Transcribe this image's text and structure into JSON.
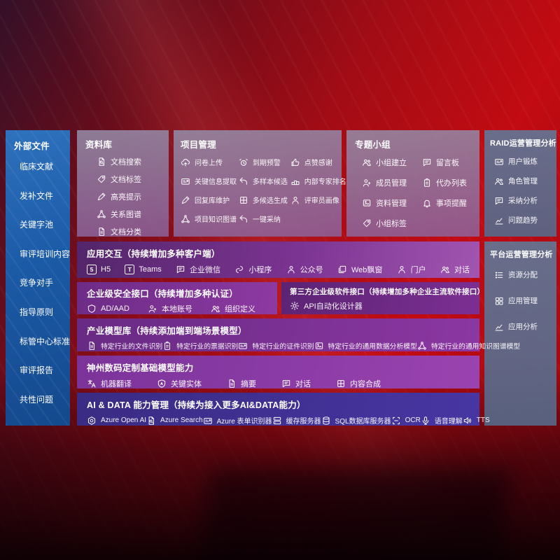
{
  "colors": {
    "background_red": "#c20b12",
    "background_dark": "#341028",
    "sidebar_blue": "#1b5aa6",
    "panel_mauve": "#8f86a5",
    "panel_slate": "#5d7090",
    "purple_light": "#9a43b0",
    "purple_mid": "#8c37a2",
    "purple_dark": "#5c2374",
    "indigo": "#4736a2"
  },
  "sidebar": {
    "title": "外部文件",
    "items": [
      "临床文献",
      "发补文件",
      "关键字池",
      "审评培训内容",
      "竞争对手",
      "指导原则",
      "标管中心标准",
      "审评报告",
      "共性问题"
    ]
  },
  "panels": {
    "repository": {
      "title": "资料库",
      "items": [
        {
          "icon": "doc-search",
          "label": "文档搜索"
        },
        {
          "icon": "tag",
          "label": "文档标签"
        },
        {
          "icon": "pen",
          "label": "高亮提示"
        },
        {
          "icon": "network",
          "label": "关系图谱"
        },
        {
          "icon": "doc",
          "label": "文档分类"
        }
      ]
    },
    "project": {
      "title": "项目管理",
      "items": [
        {
          "icon": "cloud-upload",
          "label": "问卷上传"
        },
        {
          "icon": "alarm",
          "label": "到期预警"
        },
        {
          "icon": "thumb-up",
          "label": "点赞感谢"
        },
        {
          "icon": "id-card",
          "label": "关键信息提取"
        },
        {
          "icon": "reply",
          "label": "多样本候选"
        },
        {
          "icon": "rank",
          "label": "内部专家排名"
        },
        {
          "icon": "pen",
          "label": "回复库维护"
        },
        {
          "icon": "puzzle",
          "label": "多候选生成"
        },
        {
          "icon": "person",
          "label": "评审员画像"
        },
        {
          "icon": "network",
          "label": "项目知识图谱"
        },
        {
          "icon": "reply",
          "label": "一键采纳"
        }
      ]
    },
    "group": {
      "title": "专题小组",
      "items": [
        {
          "icon": "people",
          "label": "小组建立"
        },
        {
          "icon": "chat",
          "label": "留言板"
        },
        {
          "icon": "person-add",
          "label": "成员管理"
        },
        {
          "icon": "clipboard",
          "label": "代办列表"
        },
        {
          "icon": "album",
          "label": "资料管理"
        },
        {
          "icon": "bell",
          "label": "事项提醒"
        },
        {
          "icon": "tag",
          "label": "小组标签"
        }
      ]
    },
    "raid": {
      "title": "RAID运营管理分析",
      "items": [
        {
          "icon": "id-card",
          "label": "用户锻炼"
        },
        {
          "icon": "people",
          "label": "角色管理"
        },
        {
          "icon": "chat",
          "label": "采纳分析"
        },
        {
          "icon": "chart",
          "label": "问题趋势"
        }
      ]
    },
    "platform": {
      "title": "平台运营管理分析",
      "items": [
        {
          "icon": "list",
          "label": "资源分配"
        },
        {
          "icon": "grid",
          "label": "应用管理"
        },
        {
          "icon": "chart",
          "label": "应用分析"
        }
      ]
    },
    "interaction": {
      "title": "应用交互（持续增加多种客户端）",
      "items": [
        {
          "icon": "h5",
          "label": "H5"
        },
        {
          "icon": "teams",
          "label": "Teams"
        },
        {
          "icon": "chat",
          "label": "企业微信"
        },
        {
          "icon": "miniprogram",
          "label": "小程序"
        },
        {
          "icon": "person",
          "label": "公众号"
        },
        {
          "icon": "window",
          "label": "Web飘窗"
        },
        {
          "icon": "person",
          "label": "门户"
        },
        {
          "icon": "people",
          "label": "对话"
        }
      ]
    },
    "security": {
      "title": "企业级安全接口（持续增加多种认证）",
      "items": [
        {
          "icon": "shield",
          "label": "AD/AAD"
        },
        {
          "icon": "person-add",
          "label": "本地账号"
        },
        {
          "icon": "people",
          "label": "组织定义"
        }
      ]
    },
    "third_party": {
      "title": "第三方企业级软件接口（持续增加多种企业主流软件接口）",
      "items": [
        {
          "icon": "gear",
          "label": "API自动化设计器"
        }
      ]
    },
    "industry_models": {
      "title": "产业模型库（持续添加端到端场景模型）",
      "items": [
        {
          "icon": "doc",
          "label": "特定行业的文件识别"
        },
        {
          "icon": "clipboard",
          "label": "特定行业的票据识别"
        },
        {
          "icon": "id-card",
          "label": "特定行业的证件识别"
        },
        {
          "icon": "album",
          "label": "特定行业的通用数据分析模型"
        },
        {
          "icon": "network",
          "label": "特定行业的通用知识图谱模型"
        }
      ]
    },
    "base_models": {
      "title": "神州数码定制基础模型能力",
      "items": [
        {
          "icon": "translate",
          "label": "机器翻译"
        },
        {
          "icon": "entity",
          "label": "关键实体"
        },
        {
          "icon": "doc",
          "label": "摘要"
        },
        {
          "icon": "chat",
          "label": "对话"
        },
        {
          "icon": "puzzle",
          "label": "内容合成"
        }
      ]
    },
    "ai_data": {
      "title": "AI & DATA 能力管理（持续为接入更多AI&DATA能力）",
      "items": [
        {
          "icon": "openai",
          "label": "Azure Open AI"
        },
        {
          "icon": "doc-search",
          "label": "Azure Search"
        },
        {
          "icon": "id-card",
          "label": "Azure 表单识别器"
        },
        {
          "icon": "server",
          "label": "缓存服务器"
        },
        {
          "icon": "db",
          "label": "SQL数据库服务器"
        },
        {
          "icon": "scan",
          "label": "OCR"
        },
        {
          "icon": "mic",
          "label": "语音理解"
        },
        {
          "icon": "speaker",
          "label": "TTS"
        }
      ]
    }
  }
}
